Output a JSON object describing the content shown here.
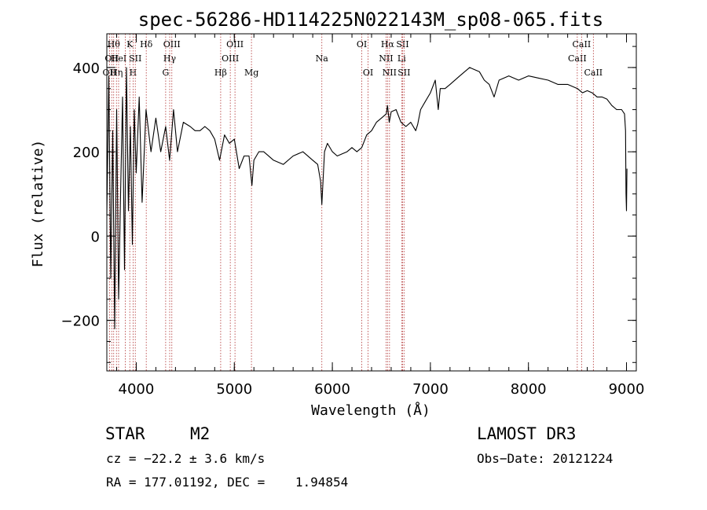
{
  "chart_data": {
    "type": "line",
    "title": "spec-56286-HD114225N022143M_sp08-065.fits",
    "xlabel": "Wavelength (Å)",
    "ylabel": "Flux (relative)",
    "xlim": [
      3700,
      9100
    ],
    "ylim": [
      -320,
      480
    ],
    "xticks": [
      4000,
      5000,
      6000,
      7000,
      8000,
      9000
    ],
    "yticks": [
      -200,
      0,
      200,
      400
    ],
    "x_minor_step": 200,
    "y_minor_step": 50,
    "series": [
      {
        "name": "flux",
        "color": "#000000",
        "x": [
          3700,
          3720,
          3740,
          3760,
          3780,
          3800,
          3820,
          3840,
          3860,
          3880,
          3900,
          3920,
          3940,
          3960,
          3980,
          4000,
          4030,
          4060,
          4100,
          4150,
          4200,
          4250,
          4300,
          4340,
          4380,
          4420,
          4480,
          4550,
          4600,
          4650,
          4700,
          4750,
          4800,
          4850,
          4900,
          4950,
          5000,
          5050,
          5100,
          5150,
          5180,
          5200,
          5250,
          5300,
          5400,
          5500,
          5600,
          5700,
          5800,
          5850,
          5880,
          5893,
          5905,
          5920,
          5950,
          6000,
          6050,
          6100,
          6150,
          6200,
          6250,
          6300,
          6350,
          6400,
          6450,
          6500,
          6550,
          6563,
          6580,
          6600,
          6650,
          6700,
          6750,
          6800,
          6850,
          6870,
          6900,
          6950,
          7000,
          7050,
          7080,
          7100,
          7150,
          7200,
          7300,
          7400,
          7450,
          7500,
          7550,
          7600,
          7650,
          7700,
          7800,
          7900,
          8000,
          8100,
          8200,
          8300,
          8400,
          8500,
          8550,
          8600,
          8650,
          8700,
          8750,
          8800,
          8850,
          8900,
          8950,
          8980,
          8990,
          8995,
          9000,
          9005
        ],
        "y": [
          50,
          380,
          -100,
          250,
          -220,
          300,
          -150,
          100,
          330,
          -80,
          400,
          60,
          260,
          -20,
          300,
          150,
          330,
          80,
          300,
          200,
          280,
          200,
          260,
          180,
          300,
          200,
          270,
          260,
          250,
          250,
          260,
          250,
          230,
          180,
          240,
          220,
          230,
          160,
          190,
          190,
          120,
          180,
          200,
          200,
          180,
          170,
          190,
          200,
          180,
          170,
          130,
          75,
          130,
          200,
          220,
          200,
          190,
          195,
          200,
          210,
          200,
          210,
          240,
          250,
          270,
          280,
          290,
          310,
          270,
          295,
          300,
          270,
          260,
          270,
          250,
          265,
          300,
          320,
          340,
          370,
          300,
          350,
          350,
          360,
          380,
          400,
          395,
          390,
          370,
          360,
          330,
          370,
          380,
          370,
          380,
          375,
          370,
          360,
          360,
          350,
          340,
          345,
          340,
          330,
          330,
          325,
          310,
          300,
          300,
          290,
          250,
          100,
          60,
          160
        ]
      }
    ],
    "line_marks": [
      {
        "wl": 3727,
        "label": "OII",
        "row": 3
      },
      {
        "wl": 3750,
        "label": "OII",
        "row": 2
      },
      {
        "wl": 3770,
        "label": "Hθ",
        "row": 1
      },
      {
        "wl": 3798,
        "label": "Hη",
        "row": 3
      },
      {
        "wl": 3820,
        "label": "HeI",
        "row": 2
      },
      {
        "wl": 3889,
        "label": "",
        "row": 0
      },
      {
        "wl": 3934,
        "label": "K",
        "row": 1
      },
      {
        "wl": 3968,
        "label": "H",
        "row": 3
      },
      {
        "wl": 3990,
        "label": "SII",
        "row": 2
      },
      {
        "wl": 4102,
        "label": "Hδ",
        "row": 1
      },
      {
        "wl": 4300,
        "label": "G",
        "row": 3
      },
      {
        "wl": 4341,
        "label": "Hγ",
        "row": 2
      },
      {
        "wl": 4363,
        "label": "OIII",
        "row": 1
      },
      {
        "wl": 4861,
        "label": "Hβ",
        "row": 3
      },
      {
        "wl": 4959,
        "label": "OIII",
        "row": 2
      },
      {
        "wl": 5007,
        "label": "OIII",
        "row": 1
      },
      {
        "wl": 5175,
        "label": "Mg",
        "row": 3
      },
      {
        "wl": 5893,
        "label": "Na",
        "row": 2
      },
      {
        "wl": 6300,
        "label": "OI",
        "row": 1
      },
      {
        "wl": 6364,
        "label": "OI",
        "row": 3
      },
      {
        "wl": 6548,
        "label": "NII",
        "row": 2
      },
      {
        "wl": 6563,
        "label": "Hα",
        "row": 1
      },
      {
        "wl": 6583,
        "label": "NII",
        "row": 3
      },
      {
        "wl": 6707,
        "label": "Li",
        "row": 2
      },
      {
        "wl": 6716,
        "label": "SII",
        "row": 1
      },
      {
        "wl": 6731,
        "label": "SII",
        "row": 3
      },
      {
        "wl": 8498,
        "label": "CaII",
        "row": 2
      },
      {
        "wl": 8542,
        "label": "CaII",
        "row": 1
      },
      {
        "wl": 8662,
        "label": "CaII",
        "row": 3
      }
    ]
  },
  "info": {
    "class": "STAR",
    "subclass": "M2",
    "survey": "LAMOST DR3",
    "cz": "cz = −22.2 ± 3.6 km/s",
    "obs_date": "Obs−Date: 20121224",
    "coords": "RA = 177.01192, DEC =    1.94854"
  },
  "colors": {
    "line_marker": "#b03030",
    "ink": "#000000"
  }
}
